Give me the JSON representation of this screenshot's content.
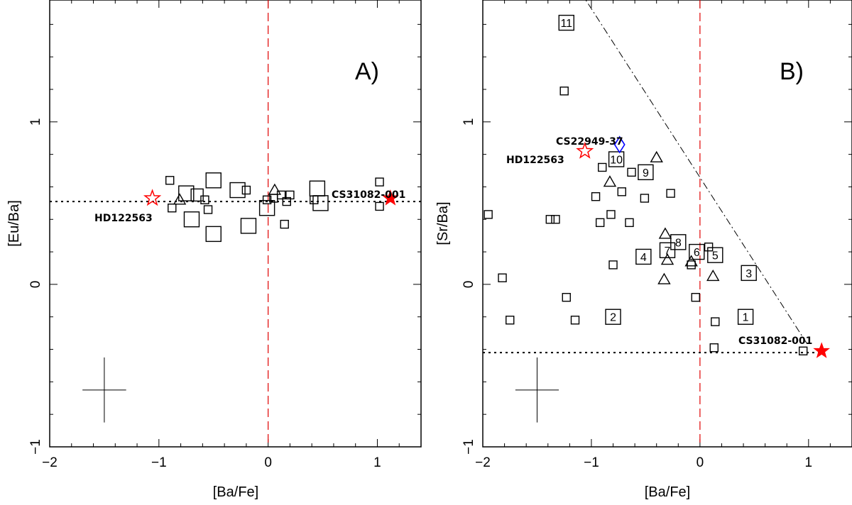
{
  "chart_data": [
    {
      "type": "scatter",
      "panel_label": "A)",
      "xlabel": "[Ba/Fe]",
      "ylabel": "[Eu/Ba]",
      "xlim": [
        -2,
        1.4
      ],
      "ylim": [
        -1,
        1.75
      ],
      "x_ticks": [
        -2,
        -1,
        0,
        1
      ],
      "y_ticks": [
        -1,
        0,
        1
      ],
      "vline_x": 0,
      "hline_y": 0.51,
      "error_bar": {
        "x": -1.5,
        "y": -0.65,
        "dx": 0.2,
        "dy": 0.2
      },
      "series": [
        {
          "marker": "square-small",
          "points": [
            {
              "x": -0.9,
              "y": 0.64
            },
            {
              "x": -0.88,
              "y": 0.47
            },
            {
              "x": -0.58,
              "y": 0.52
            },
            {
              "x": -0.55,
              "y": 0.46
            },
            {
              "x": -0.2,
              "y": 0.58
            },
            {
              "x": -0.01,
              "y": 0.52
            },
            {
              "x": 0.05,
              "y": 0.53
            },
            {
              "x": 0.12,
              "y": 0.55
            },
            {
              "x": 0.17,
              "y": 0.51
            },
            {
              "x": 0.15,
              "y": 0.37
            },
            {
              "x": 0.2,
              "y": 0.55
            },
            {
              "x": 0.42,
              "y": 0.52
            },
            {
              "x": 1.02,
              "y": 0.63
            },
            {
              "x": 1.02,
              "y": 0.48
            }
          ]
        },
        {
          "marker": "square-medium",
          "points": [
            {
              "x": -0.65,
              "y": 0.55
            }
          ]
        },
        {
          "marker": "square-large",
          "points": [
            {
              "x": -0.75,
              "y": 0.56
            },
            {
              "x": -0.7,
              "y": 0.4
            },
            {
              "x": -0.5,
              "y": 0.64
            },
            {
              "x": -0.5,
              "y": 0.31
            },
            {
              "x": -0.28,
              "y": 0.58
            },
            {
              "x": -0.18,
              "y": 0.36
            },
            {
              "x": -0.01,
              "y": 0.47
            },
            {
              "x": 0.45,
              "y": 0.59
            },
            {
              "x": 0.48,
              "y": 0.5
            }
          ]
        },
        {
          "marker": "triangle",
          "points": [
            {
              "x": -0.81,
              "y": 0.52
            },
            {
              "x": 0.06,
              "y": 0.58
            }
          ]
        }
      ],
      "highlights": [
        {
          "name": "HD122563",
          "x": -1.06,
          "y": 0.53,
          "marker": "star-open",
          "color": "#ff0000"
        },
        {
          "name": "CS31082-001",
          "x": 1.12,
          "y": 0.53,
          "marker": "star-filled",
          "color": "#ff0000"
        }
      ],
      "annotations": [
        {
          "text": "HD122563"
        },
        {
          "text": "CS31082-001"
        }
      ]
    },
    {
      "type": "scatter",
      "panel_label": "B)",
      "xlabel": "[Ba/Fe]",
      "ylabel": "[Sr/Ba]",
      "xlim": [
        -2,
        1.4
      ],
      "ylim": [
        -1,
        1.75
      ],
      "x_ticks": [
        -2,
        -1,
        0,
        1
      ],
      "y_ticks": [
        -1,
        0,
        1
      ],
      "vline_x": 0,
      "hline": {
        "y": -0.42,
        "x_from": -2,
        "x_to": 1.12
      },
      "dashdot_line": {
        "x1": -1.1,
        "y1": 1.8,
        "x2": 1.0,
        "y2": -0.38
      },
      "error_bar": {
        "x": -1.5,
        "y": -0.65,
        "dx": 0.2,
        "dy": 0.2
      },
      "series": [
        {
          "marker": "square-small",
          "points": [
            {
              "x": -1.95,
              "y": 0.43
            },
            {
              "x": -1.82,
              "y": 0.04
            },
            {
              "x": -1.75,
              "y": -0.22
            },
            {
              "x": -1.38,
              "y": 0.4
            },
            {
              "x": -1.33,
              "y": 0.4
            },
            {
              "x": -1.25,
              "y": 1.19
            },
            {
              "x": -1.23,
              "y": -0.08
            },
            {
              "x": -1.15,
              "y": -0.22
            },
            {
              "x": -0.96,
              "y": 0.54
            },
            {
              "x": -0.92,
              "y": 0.38
            },
            {
              "x": -0.9,
              "y": 0.72
            },
            {
              "x": -0.82,
              "y": 0.43
            },
            {
              "x": -0.8,
              "y": 0.12
            },
            {
              "x": -0.72,
              "y": 0.57
            },
            {
              "x": -0.63,
              "y": 0.69
            },
            {
              "x": -0.65,
              "y": 0.38
            },
            {
              "x": -0.51,
              "y": 0.53
            },
            {
              "x": -0.27,
              "y": 0.56
            },
            {
              "x": -0.08,
              "y": 0.12
            },
            {
              "x": -0.04,
              "y": -0.08
            },
            {
              "x": 0.08,
              "y": 0.23
            },
            {
              "x": 0.13,
              "y": -0.39
            },
            {
              "x": 0.14,
              "y": -0.23
            },
            {
              "x": 0.95,
              "y": -0.41
            }
          ]
        },
        {
          "marker": "square-labeled",
          "points": [
            {
              "x": 0.42,
              "y": -0.2,
              "label": "1"
            },
            {
              "x": -0.8,
              "y": -0.2,
              "label": "2"
            },
            {
              "x": 0.45,
              "y": 0.07,
              "label": "3"
            },
            {
              "x": -0.52,
              "y": 0.17,
              "label": "4"
            },
            {
              "x": 0.14,
              "y": 0.18,
              "label": "5"
            },
            {
              "x": -0.03,
              "y": 0.2,
              "label": "6"
            },
            {
              "x": -0.3,
              "y": 0.21,
              "label": "7"
            },
            {
              "x": -0.2,
              "y": 0.26,
              "label": "8"
            },
            {
              "x": -0.5,
              "y": 0.69,
              "label": "9"
            },
            {
              "x": -0.77,
              "y": 0.77,
              "label": "10"
            },
            {
              "x": -1.23,
              "y": 1.61,
              "label": "11"
            }
          ]
        },
        {
          "marker": "triangle",
          "points": [
            {
              "x": -0.83,
              "y": 0.63
            },
            {
              "x": -0.4,
              "y": 0.78
            },
            {
              "x": -0.32,
              "y": 0.31
            },
            {
              "x": -0.3,
              "y": 0.15
            },
            {
              "x": -0.33,
              "y": 0.03
            },
            {
              "x": -0.08,
              "y": 0.14
            },
            {
              "x": 0.12,
              "y": 0.05
            }
          ]
        }
      ],
      "highlights": [
        {
          "name": "HD122563",
          "x": -1.06,
          "y": 0.82,
          "marker": "star-open",
          "color": "#ff0000"
        },
        {
          "name": "CS31082-001",
          "x": 1.12,
          "y": -0.41,
          "marker": "star-filled",
          "color": "#ff0000"
        },
        {
          "name": "CS22949-37",
          "x": -0.74,
          "y": 0.86,
          "marker": "diamond-open",
          "color": "#0000ff"
        }
      ],
      "annotations": [
        {
          "text": "HD122563"
        },
        {
          "text": "CS31082-001"
        },
        {
          "text": "CS22949-37"
        }
      ]
    }
  ]
}
